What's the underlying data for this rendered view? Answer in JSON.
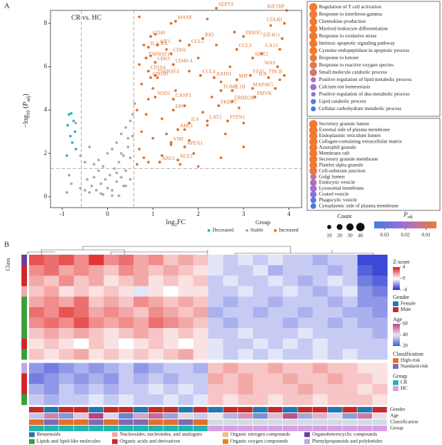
{
  "panel_labels": [
    "A",
    "B"
  ],
  "chart_data": [
    {
      "type": "scatter",
      "annotation": "CR vs. HC",
      "x_label": [
        "log",
        "2",
        "FC"
      ],
      "y_label": [
        "−log",
        "10",
        " (",
        "P",
        "adj",
        ")"
      ],
      "xlim": [
        -1.26,
        4.28
      ],
      "ylim": [
        -0.5,
        8.6
      ],
      "xticks": [
        -1,
        0,
        1,
        2,
        3,
        4
      ],
      "yticks": [
        0,
        2,
        4,
        6,
        8
      ],
      "fc_threshold": [
        -0.58,
        0.58
      ],
      "p_threshold": 1.3,
      "legend_title": "Group",
      "series": [
        {
          "name": "Decreased",
          "color": "#2bb3c0",
          "x": [
            -0.85,
            -0.8,
            -0.75,
            -0.72,
            -0.88,
            -0.82,
            -0.78,
            -0.7,
            -0.9
          ],
          "y": [
            3.8,
            3.85,
            3.5,
            3.0,
            3.3,
            2.8,
            2.5,
            2.2,
            1.9
          ]
        },
        {
          "name": "Stable",
          "color": "#a9a9a9",
          "x": [
            -0.9,
            -0.85,
            -0.8,
            -0.6,
            -0.5,
            -0.45,
            -0.4,
            -0.35,
            -0.3,
            -0.25,
            -0.2,
            -0.15,
            -0.1,
            -0.05,
            0,
            0.05,
            0.1,
            0.15,
            0.2,
            0.25,
            0.3,
            0.35,
            0.4,
            0.45,
            0.5,
            0.55,
            -0.3,
            -0.2,
            -0.1,
            0,
            0.1,
            0.2,
            0.3,
            0.4,
            0.5,
            -0.5,
            -0.4,
            0.2,
            0.35,
            0.5,
            0.3,
            0.45,
            -0.6,
            0.55,
            0.1,
            -0.15,
            0.25,
            0.4,
            -0.7,
            0.6
          ],
          "y": [
            0.2,
            1.0,
            0.6,
            0.4,
            0.3,
            0.8,
            0.2,
            0.5,
            0.9,
            0.3,
            1.2,
            0.6,
            0.1,
            0.8,
            0.4,
            1.0,
            0.3,
            1.3,
            0.7,
            1.6,
            0.9,
            1.9,
            1.2,
            2.3,
            1.8,
            2.8,
            1.5,
            1.7,
            1.4,
            2.0,
            2.2,
            2.5,
            2.9,
            3.2,
            3.5,
            1.6,
            2.3,
            1.1,
            0.5,
            0.8,
            2.0,
            2.7,
            1.9,
            3.8,
            0.05,
            0.15,
            0.05,
            0.5,
            3.4,
            4.3
          ]
        },
        {
          "name": "Increased",
          "color": "#e0702a",
          "x": [
            0.65,
            0.7,
            0.75,
            0.8,
            0.9,
            1.0,
            1.1,
            1.2,
            1.3,
            1.4,
            1.5,
            1.6,
            1.7,
            1.8,
            1.9,
            2.0,
            2.1,
            2.2,
            2.3,
            2.4,
            2.5,
            2.6,
            2.7,
            2.8,
            2.9,
            3.0,
            3.2,
            3.4,
            3.6,
            3.8,
            0.7,
            0.8,
            0.9,
            1.0,
            1.2,
            1.4,
            1.6,
            1.8,
            2.0,
            2.2,
            0.65,
            0.75,
            0.85,
            0.95,
            1.05,
            2.5,
            3.0,
            0.7,
            1.3,
            1.7
          ],
          "y": [
            1.5,
            2.2,
            3.0,
            1.8,
            4.5,
            2.7,
            5.5,
            3.6,
            6.8,
            2.4,
            4.9,
            7.2,
            3.1,
            5.8,
            2.0,
            6.4,
            3.9,
            8.2,
            4.6,
            7.0,
            5.3,
            2.9,
            6.0,
            7.6,
            4.1,
            3.4,
            5.0,
            6.6,
            7.9,
            5.4,
            6.1,
            7.0,
            1.6,
            5.0,
            1.9,
            8.0,
            1.5,
            2.6,
            1.4,
            3.3,
            4.0,
            5.2,
            3.8,
            6.5,
            7.5,
            1.8,
            2.3,
            8.3,
            2.9,
            4.2
          ]
        }
      ],
      "labeled_points": {
        "color": "#e0702a",
        "labels": [
          "KIF1BP",
          "LTA4H",
          "EIF4G1",
          "CA13",
          "WAS",
          "TBCB",
          "SIRT2",
          "PRDX5",
          "CCL3",
          "MANF",
          "SEPT9",
          "BID",
          "CCL5",
          "CD69",
          "AIF1",
          "CD40",
          "IL2–RA",
          "TNFRSF14",
          "CD63",
          "CD40–L",
          "CD164",
          "CD160",
          "TNFRSF4",
          "SOD1",
          "CCL4",
          "AXIN1",
          "CASP2",
          "MIF",
          "IL1B",
          "YES1",
          "IL8",
          "MAP4K5",
          "PMVK",
          "TGM2",
          "FKBP5",
          "PTPN1",
          "ERBB2IP",
          "LAT2",
          "IL6",
          "EPO",
          "ABL1",
          "VIM",
          "APEX1",
          "ARG1",
          "NCF2"
        ],
        "x": [
          3.95,
          3.9,
          3.85,
          3.8,
          3.75,
          3.9,
          3.2,
          3.0,
          2.85,
          1.5,
          2.4,
          2.1,
          1.8,
          1.4,
          1.1,
          0.95,
          0.9,
          0.85,
          1.05,
          1.45,
          0.9,
          0.95,
          1.05,
          1.05,
          2.05,
          2.35,
          1.45,
          2.85,
          2.75,
          3.15,
          3.55,
          3.7,
          3.25,
          2.5,
          2.45,
          2.65,
          2.75,
          2.2,
          1.8,
          1.45,
          1.55,
          1.4,
          1.7,
          1.15,
          1.55
        ],
        "y": [
          8.6,
          8.0,
          7.3,
          6.8,
          6.0,
          5.6,
          6.4,
          7.4,
          6.8,
          8.1,
          8.7,
          7.3,
          7.0,
          6.6,
          7.0,
          7.4,
          6.9,
          6.4,
          6.2,
          6.1,
          5.8,
          5.5,
          5.6,
          4.6,
          5.6,
          5.5,
          4.5,
          5.4,
          4.9,
          5.6,
          5.5,
          5.0,
          4.6,
          4.9,
          4.2,
          3.5,
          4.4,
          3.5,
          3.4,
          4.0,
          3.1,
          2.5,
          2.3,
          1.6,
          1.7
        ]
      }
    },
    {
      "type": "dot-list",
      "terms": [
        "Regulation of T cell activation",
        "Response to interferon-gamma",
        "Chemokine production",
        "Myeloid leukocyte differentiation",
        "Response to oxidative stress",
        "Intrinsic apoptotic signaling pathway",
        "Cysteine endopeptidase in apoptotic process",
        "Response to ketone",
        "Response to reactive oxygen species",
        "Small molecule catabolic process",
        "Positive regulation of lipid metabolic process",
        "Calcium ion homeostasis",
        "Positive regulation of dna metabolic process",
        "Lipid catabolic process",
        "Cellular carbohydrate metabolic process"
      ],
      "counts": [
        38,
        36,
        34,
        36,
        38,
        36,
        34,
        30,
        30,
        30,
        16,
        22,
        12,
        16,
        14
      ],
      "padj": [
        0.001,
        0.001,
        0.002,
        0.002,
        0.003,
        0.004,
        0.005,
        0.006,
        0.008,
        0.01,
        0.018,
        0.02,
        0.024,
        0.028,
        0.034
      ],
      "size_title": "Count",
      "size_ticks": [
        10,
        20,
        30,
        40
      ],
      "color_title": [
        "P",
        "adj"
      ],
      "color_lim": [
        0.035,
        0.005
      ],
      "color_ticks": [
        0.03,
        0.02,
        0.01
      ],
      "colors": [
        "#3f7be6",
        "#a36fcf",
        "#f07a32"
      ]
    },
    {
      "type": "dot-list",
      "terms": [
        "Secretory granule lumen",
        "External side of plasma membrane",
        "Endoplasmic reticulum lumen",
        "Collagen-containing extracellular matrix",
        "Azurophil granule",
        "Membrane raft",
        "Secretory granule membrane",
        "Platelet alpha granule",
        "Cell-substrate junction",
        "Golgi lumen",
        "Endocytic vesicle",
        "Lysosomal membrane",
        "Coated vesicle",
        "Phagocytic vesicle",
        "Cytoplasmic side of plasma membrane"
      ],
      "counts": [
        40,
        40,
        38,
        38,
        36,
        36,
        36,
        34,
        34,
        22,
        26,
        26,
        24,
        20,
        18
      ],
      "padj": [
        0.001,
        0.001,
        0.002,
        0.002,
        0.003,
        0.003,
        0.004,
        0.005,
        0.006,
        0.015,
        0.018,
        0.02,
        0.024,
        0.03,
        0.034
      ]
    },
    {
      "type": "heatmap",
      "row_label": "Class",
      "z_title": "Z-score",
      "zlim": [
        -4,
        4
      ],
      "zticks": [
        4,
        0,
        -4
      ],
      "z_colors": [
        "#1f2fd0",
        "#ffffff",
        "#e01818"
      ],
      "values": [
        [
          3,
          2.5,
          3,
          2,
          3.5,
          2,
          2.5,
          1.5,
          2,
          1,
          1.5,
          1,
          -0.5,
          -1,
          -0.5,
          -1,
          -0.5,
          -1,
          -1,
          -1.5,
          -1,
          -1,
          -3.5,
          -3.5
        ],
        [
          2,
          2.5,
          1.5,
          2,
          1.5,
          1,
          2,
          1.5,
          1,
          1.5,
          1,
          0.5,
          -0.5,
          -1,
          -1,
          -0.5,
          -1.5,
          -1,
          -1,
          -1,
          -1.5,
          -1,
          -3,
          -3.5
        ],
        [
          1.5,
          1,
          2,
          1,
          1.5,
          0.5,
          1,
          1.5,
          0.5,
          1,
          0.5,
          1,
          -1,
          -0.5,
          -1,
          -1,
          -0.5,
          -1,
          -1.5,
          -1,
          -0.5,
          -1,
          -2.5,
          -3
        ],
        [
          1,
          1.5,
          0.5,
          1,
          0.5,
          1,
          0.5,
          -0.5,
          0.5,
          0,
          0.5,
          0.5,
          -1,
          -1,
          -0.5,
          -1,
          -1,
          -0.5,
          -1,
          -1.5,
          -1,
          -0.5,
          -2,
          -2.5
        ],
        [
          1.5,
          2,
          1.5,
          2.5,
          1,
          1.5,
          1,
          2,
          1.5,
          1,
          1.5,
          1,
          -1,
          -1.5,
          -1,
          -1,
          -1.5,
          -1,
          -1,
          -1,
          -1.5,
          -1,
          -2,
          -2
        ],
        [
          2.5,
          2,
          3,
          2.5,
          1.5,
          2,
          1.5,
          1,
          2,
          1.5,
          1,
          1.5,
          -1.5,
          -1,
          -1,
          -1.5,
          -1,
          -1,
          -1.5,
          -1,
          -1,
          -1.5,
          -1.5,
          -2
        ],
        [
          2,
          2.5,
          2,
          3,
          2,
          1.5,
          2,
          1.5,
          2.5,
          2,
          1.5,
          1,
          -1,
          -1.5,
          -1,
          -1,
          -1,
          -1.5,
          -1,
          -1,
          -1.5,
          -1,
          -1.5,
          -1.5
        ],
        [
          1,
          1.5,
          1,
          1.5,
          1,
          0.5,
          1,
          1.5,
          1,
          0.5,
          1,
          0.5,
          -1,
          -1,
          -0.5,
          -1,
          -1,
          -1,
          -0.5,
          -1,
          -1,
          -1,
          -1,
          -1.5
        ],
        [
          0.5,
          1,
          0.5,
          0,
          1,
          0.5,
          0,
          0.5,
          1,
          0.5,
          0,
          0.5,
          -0.5,
          -1,
          -1,
          -0.5,
          -1,
          -0.5,
          -1,
          -0.5,
          -1,
          -1,
          -1,
          -1
        ],
        [
          1,
          0.5,
          1,
          1.5,
          0.5,
          1,
          0.5,
          1,
          0.5,
          1,
          1.5,
          0.5,
          -0.5,
          -1,
          -0.5,
          -1,
          -0.5,
          -1,
          -1,
          -0.5,
          -1,
          -0.5,
          -1,
          -1
        ],
        [
          -2,
          -2.5,
          -2,
          -1.5,
          -2,
          -1.5,
          -1,
          -2,
          -1.5,
          -1,
          -1,
          -1.5,
          1,
          1.5,
          1,
          1,
          1.5,
          1,
          1,
          1.5,
          1,
          1,
          0.5,
          0.5
        ],
        [
          -2.5,
          -2,
          -1.5,
          -2,
          -1.5,
          -2,
          -1,
          -1.5,
          -1,
          -1.5,
          -1,
          -1,
          1.5,
          1,
          1.5,
          1,
          1,
          1.5,
          1,
          1,
          1.5,
          1,
          1,
          0.5
        ],
        [
          -1.5,
          -2,
          -1,
          -1.5,
          -1,
          -1.5,
          -1,
          -1,
          -0.5,
          -1,
          -0.5,
          -1,
          1,
          1,
          1.5,
          1,
          1,
          1,
          1.5,
          1,
          1,
          1,
          0.5,
          1
        ],
        [
          -1,
          -1.5,
          -1,
          -1,
          -0.5,
          -1,
          -0.5,
          -1,
          -1,
          -0.5,
          -1,
          -0.5,
          1,
          0.5,
          1,
          1,
          0.5,
          1,
          1,
          0.5,
          1,
          1,
          1,
          0.5
        ]
      ],
      "row_classes": [
        6,
        3,
        3,
        2,
        1,
        1,
        1,
        1,
        3,
        1,
        7,
        3,
        3,
        1
      ],
      "classes": {
        "names": [
          "Benzenoids",
          "Lipids and lipid-like molecules",
          "Nucleosides, nucleotides, and analogues",
          "Organic acids and derivatives",
          "Organic nitrogen compounds",
          "Organic oxygen compounds",
          "Organoheterocyclic compounds",
          "Phenylpropanoids and polyketides"
        ],
        "colors": [
          "#2c6fb5",
          "#3aa03a",
          "#f3a6a6",
          "#d0262a",
          "#f5bb78",
          "#f08020",
          "#6a3d9a",
          "#c6a6e2"
        ]
      },
      "annotations": [
        {
          "name": "Gender",
          "levels": [
            "Female",
            "Male"
          ],
          "colors": [
            "#1f78b4",
            "#c62a2a"
          ],
          "values": [
            1,
            0,
            1,
            1,
            0,
            1,
            1,
            0,
            1,
            1,
            0,
            1,
            0,
            1,
            1,
            0,
            1,
            0,
            1,
            1,
            0,
            1,
            0,
            1
          ]
        },
        {
          "name": "Age",
          "lim": [
            20,
            60
          ],
          "ticks": [
            60,
            40,
            20
          ],
          "colors": [
            "#3f63c8",
            "#eee4f2",
            "#b5447e"
          ],
          "values": [
            35,
            52,
            28,
            44,
            60,
            38,
            25,
            48,
            55,
            30,
            42,
            36,
            40,
            33,
            50,
            27,
            45,
            58,
            31,
            46,
            38,
            29,
            53,
            41
          ]
        },
        {
          "name": "Classification",
          "levels": [
            "High-risk",
            "Standard-risk"
          ],
          "colors": [
            "#e0702a",
            "#7d6bb0"
          ],
          "na_color": "#d5dbe3",
          "values": [
            0,
            1,
            0,
            0,
            1,
            0,
            1,
            1,
            0,
            0,
            1,
            0,
            null,
            null,
            null,
            null,
            null,
            null,
            null,
            null,
            null,
            null,
            null,
            null
          ]
        },
        {
          "name": "Group",
          "levels": [
            "CR",
            "HC"
          ],
          "colors": [
            "#22b5b0",
            "#d99fe6"
          ],
          "values": [
            0,
            0,
            0,
            0,
            0,
            0,
            0,
            0,
            0,
            0,
            0,
            0,
            1,
            1,
            1,
            1,
            1,
            1,
            1,
            1,
            1,
            1,
            1,
            1
          ]
        }
      ]
    }
  ]
}
